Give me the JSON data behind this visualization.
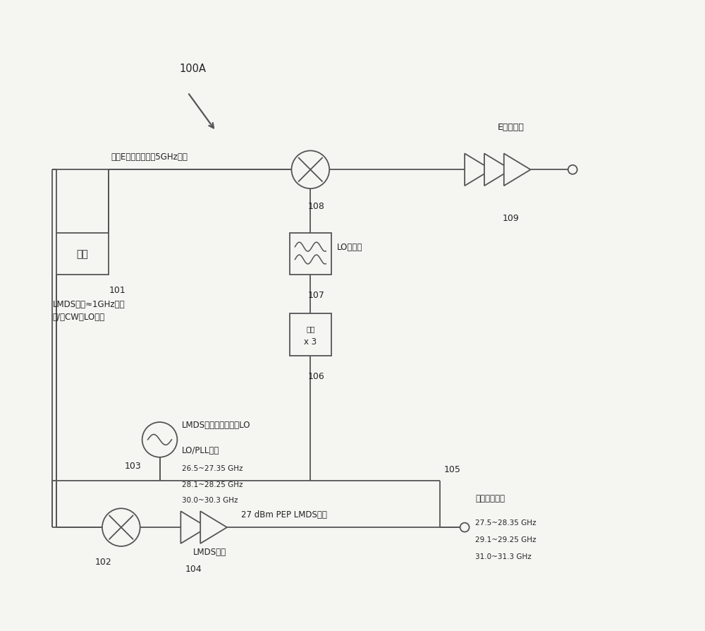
{
  "bg_color": "#f5f5f2",
  "line_color": "#555555",
  "text_color": "#222222",
  "fig_width": 10.0,
  "fig_height": 8.95,
  "text_100A": "100A",
  "text_wideband": "宽带E频带基带信号5GHz带宽",
  "text_lmds_baseband": "LMDS基带≈1GHz带宽\n和/或CW或LO生成",
  "text_lo_filter": "LO滤波器",
  "text_wuyuan": "无源",
  "text_x3": "x 3",
  "text_lmds_array": "LMDS阵列直接转换的LO",
  "text_pll_line1": "LO/PLL范围",
  "text_pll_line2": "26.5~27.35 GHz",
  "text_pll_line3": "28.1~28.25 GHz",
  "text_pll_line4": "30.0~30.3 GHz",
  "text_e_band_amp": "E频带功放",
  "text_lmds_amp": "LMDS功放",
  "text_27dbm": "27 dBm PEP LMDS功放",
  "text_mod_title": "调制后的频谱",
  "text_mod_line1": "27.5~28.35 GHz",
  "text_mod_line2": "29.1~29.25 GHz",
  "text_mod_line3": "31.0~31.3 GHz",
  "text_baseband_box": "基带",
  "label_101": "101",
  "label_102": "102",
  "label_103": "103",
  "label_104": "104",
  "label_105": "105",
  "label_106": "106",
  "label_107": "107",
  "label_108": "108",
  "label_109": "109"
}
